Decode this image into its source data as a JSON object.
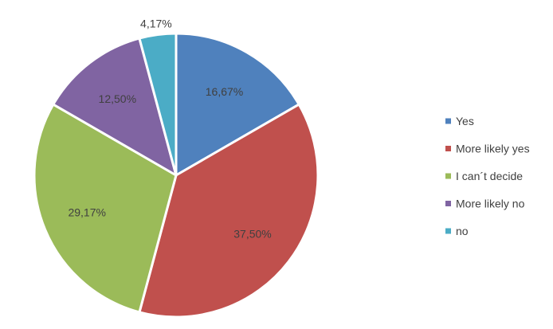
{
  "chart_data": {
    "type": "pie",
    "title": "",
    "series": [
      {
        "categories": [
          "Yes",
          "More likely yes",
          "I can´t decide",
          "More likely no",
          "no"
        ],
        "values": [
          16.67,
          37.5,
          29.17,
          12.5,
          4.17
        ],
        "labels": [
          "16,67%",
          "37,50%",
          "29,17%",
          "12,50%",
          "4,17%"
        ],
        "colors": [
          "#4f81bd",
          "#c0504d",
          "#9bbb59",
          "#8064a2",
          "#4bacc6"
        ]
      }
    ],
    "start_angle": "12 o'clock",
    "direction": "clockwise",
    "legend_position": "right"
  }
}
